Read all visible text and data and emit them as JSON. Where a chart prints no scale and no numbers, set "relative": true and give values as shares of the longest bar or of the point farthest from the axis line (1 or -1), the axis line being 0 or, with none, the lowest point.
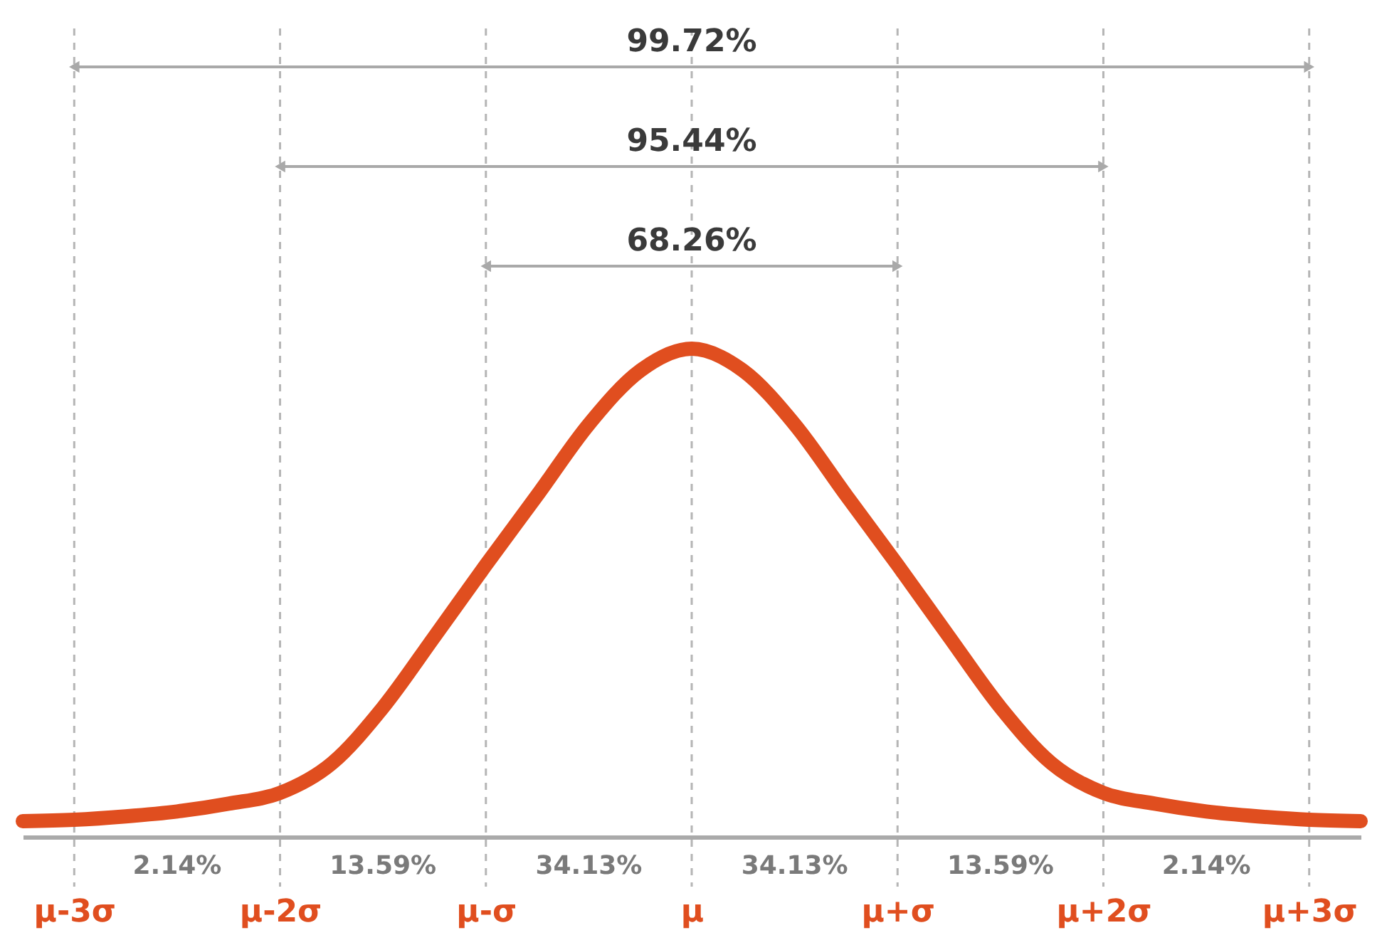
{
  "chart_data": {
    "type": "line",
    "relative": true,
    "categories": [
      null,
      "μ-3σ",
      null,
      null,
      null,
      "μ-2σ",
      null,
      null,
      null,
      "μ-σ",
      null,
      null,
      null,
      "μ",
      null,
      null,
      null,
      "μ+σ",
      null,
      null,
      null,
      "μ+2σ",
      null,
      null,
      null,
      "μ+3σ",
      null
    ],
    "series": [
      {
        "color": "#e04e1f",
        "values": [
          0.032,
          0.035,
          0.042,
          0.052,
          0.068,
          0.09,
          0.15,
          0.265,
          0.41,
          0.557,
          0.7,
          0.845,
          0.955,
          1,
          0.955,
          0.845,
          0.7,
          0.557,
          0.41,
          0.265,
          0.15,
          0.09,
          0.068,
          0.052,
          0.042,
          0.035,
          0.032
        ]
      }
    ],
    "grid": "x",
    "line_style": "solid",
    "marker": "none",
    "annotations": [
      "99.72%",
      "95.44%",
      "68.26%",
      "2.14%",
      "13.59%",
      "34.13%",
      "34.13%",
      "13.59%",
      "2.14%"
    ]
  }
}
